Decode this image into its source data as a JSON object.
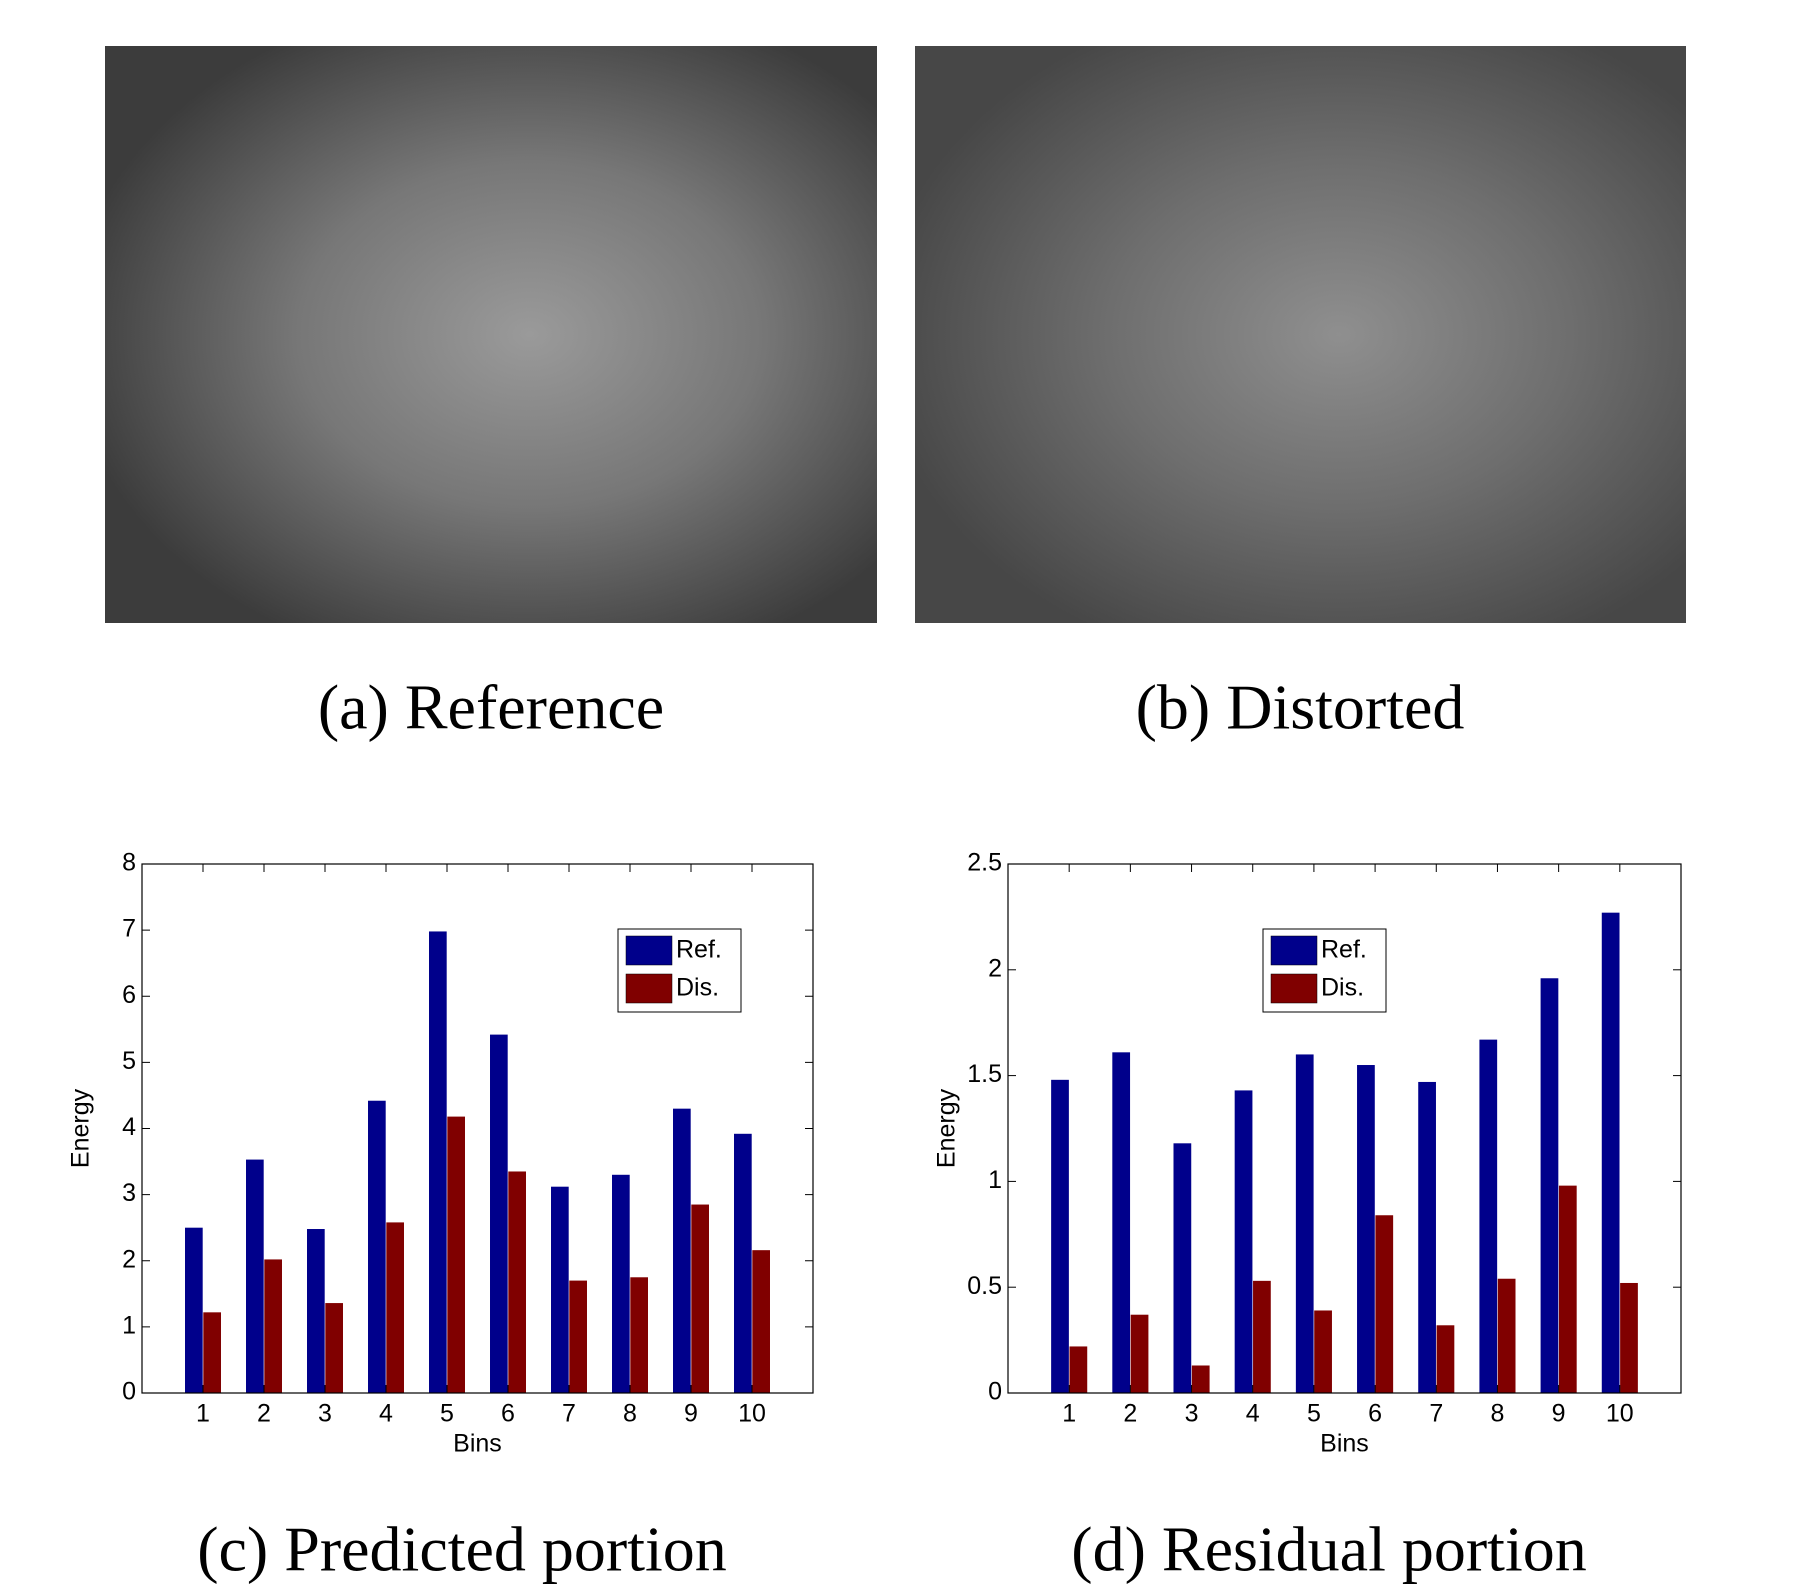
{
  "captions": [
    "(a) Reference",
    "(b) Distorted",
    "(c) Predicted portion",
    "(d) Residual portion"
  ],
  "chart_data": [
    {
      "type": "bar",
      "x_label": "Bins",
      "y_label": "Energy",
      "x": [
        1,
        2,
        3,
        4,
        5,
        6,
        7,
        8,
        9,
        10
      ],
      "xlim": [
        0,
        11
      ],
      "xticks": [
        1,
        2,
        3,
        4,
        5,
        6,
        7,
        8,
        9,
        10
      ],
      "ylim": [
        0,
        8
      ],
      "yticks": [
        0,
        1,
        2,
        3,
        4,
        5,
        6,
        7,
        8
      ],
      "grid": false,
      "legend": "upper right",
      "series": [
        {
          "name": "Ref.",
          "color": "#00008b",
          "values": [
            2.5,
            3.53,
            2.48,
            4.42,
            6.98,
            5.42,
            3.12,
            3.3,
            4.3,
            3.92
          ]
        },
        {
          "name": "Dis.",
          "color": "#800000",
          "values": [
            1.22,
            2.02,
            1.36,
            2.58,
            4.18,
            3.35,
            1.7,
            1.75,
            2.85,
            2.16
          ]
        }
      ]
    },
    {
      "type": "bar",
      "x_label": "Bins",
      "y_label": "Energy",
      "x": [
        1,
        2,
        3,
        4,
        5,
        6,
        7,
        8,
        9,
        10
      ],
      "xlim": [
        0,
        11
      ],
      "xticks": [
        1,
        2,
        3,
        4,
        5,
        6,
        7,
        8,
        9,
        10
      ],
      "ylim": [
        0,
        2.5
      ],
      "yticks": [
        0,
        0.5,
        1,
        1.5,
        2,
        2.5
      ],
      "grid": false,
      "legend": "upper center",
      "series": [
        {
          "name": "Ref.",
          "color": "#00008b",
          "values": [
            1.48,
            1.61,
            1.18,
            1.43,
            1.6,
            1.55,
            1.47,
            1.67,
            1.96,
            2.27
          ]
        },
        {
          "name": "Dis.",
          "color": "#800000",
          "values": [
            0.22,
            0.37,
            0.13,
            0.53,
            0.39,
            0.84,
            0.32,
            0.54,
            0.98,
            0.52
          ]
        }
      ]
    }
  ]
}
